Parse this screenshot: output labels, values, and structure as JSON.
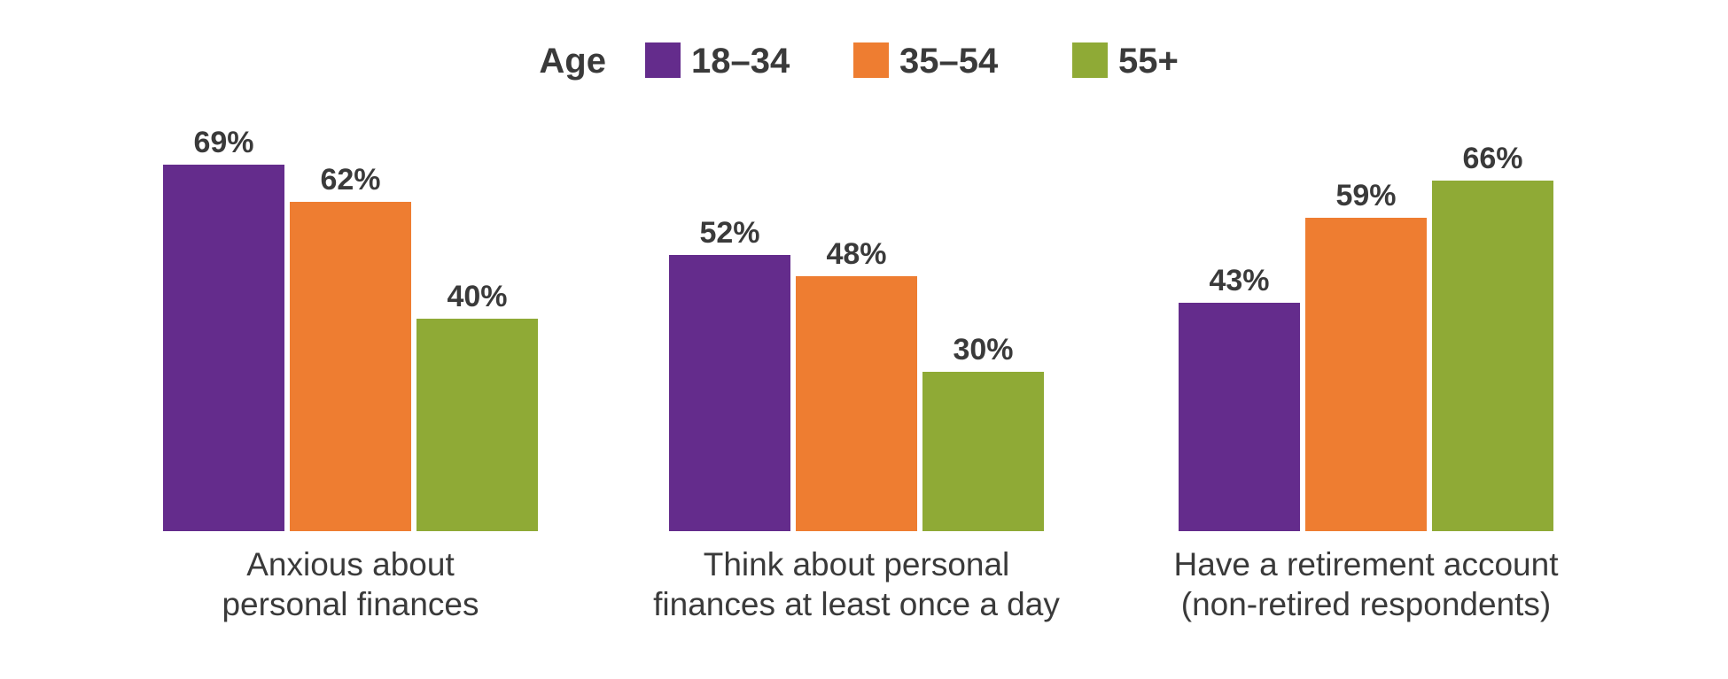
{
  "chart_data": {
    "type": "bar",
    "legend": {
      "title": "Age",
      "placement": "top-center"
    },
    "categories": [
      [
        "Anxious about",
        "personal finances"
      ],
      [
        "Think about personal",
        "finances at least once a day"
      ],
      [
        "Have a retirement account",
        "(non-retired respondents)"
      ]
    ],
    "series": [
      {
        "name": "18–34",
        "color": "#642c8c",
        "values": [
          69,
          52,
          43
        ]
      },
      {
        "name": "35–54",
        "color": "#ee7d31",
        "values": [
          62,
          48,
          59
        ]
      },
      {
        "name": "55+",
        "color": "#8faa36",
        "values": [
          40,
          30,
          66
        ]
      }
    ],
    "value_suffix": "%",
    "ylim": [
      0,
      100
    ],
    "grid": false
  }
}
